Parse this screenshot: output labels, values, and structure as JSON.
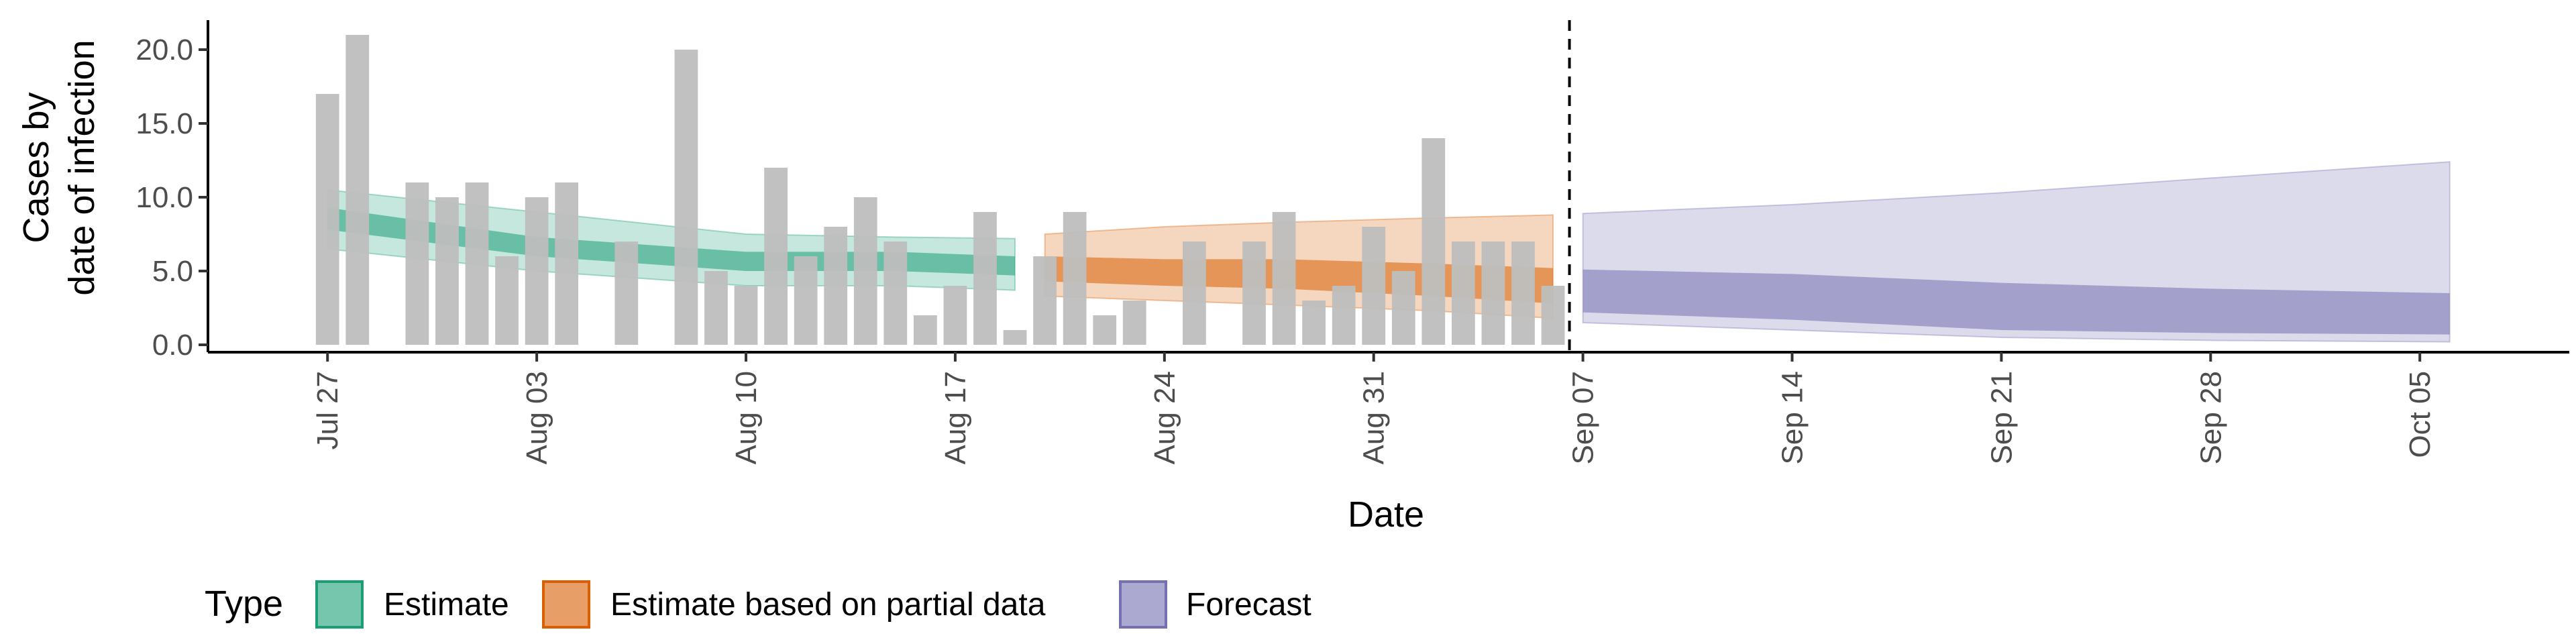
{
  "chart_data": {
    "type": "bar",
    "xlabel": "Date",
    "ylabel_lines": [
      "Cases by",
      "date of infection"
    ],
    "ylim": [
      -0.5,
      22
    ],
    "y_ticks": [
      0,
      5,
      10,
      15,
      20
    ],
    "y_tick_labels": [
      "0.0",
      "5.0",
      "10.0",
      "15.0",
      "20.0"
    ],
    "x_range": [
      "2021-07-23",
      "2021-10-10"
    ],
    "x_tick_dates": [
      "2021-07-27",
      "2021-08-03",
      "2021-08-10",
      "2021-08-17",
      "2021-08-24",
      "2021-08-31",
      "2021-09-07",
      "2021-09-14",
      "2021-09-21",
      "2021-09-28",
      "2021-10-05"
    ],
    "x_tick_labels": [
      "Jul 27",
      "Aug 03",
      "Aug 10",
      "Aug 17",
      "Aug 24",
      "Aug 31",
      "Sep 07",
      "Sep 14",
      "Sep 21",
      "Sep 28",
      "Oct 05"
    ],
    "bar_dates": [
      "2021-07-27",
      "2021-07-28",
      "2021-07-29",
      "2021-07-30",
      "2021-07-31",
      "2021-08-01",
      "2021-08-02",
      "2021-08-03",
      "2021-08-04",
      "2021-08-05",
      "2021-08-06",
      "2021-08-07",
      "2021-08-08",
      "2021-08-09",
      "2021-08-10",
      "2021-08-11",
      "2021-08-12",
      "2021-08-13",
      "2021-08-14",
      "2021-08-15",
      "2021-08-16",
      "2021-08-17",
      "2021-08-18",
      "2021-08-19",
      "2021-08-20",
      "2021-08-21",
      "2021-08-22",
      "2021-08-23",
      "2021-08-24",
      "2021-08-25",
      "2021-08-26",
      "2021-08-27",
      "2021-08-28",
      "2021-08-29",
      "2021-08-30",
      "2021-08-31",
      "2021-09-01",
      "2021-09-02",
      "2021-09-03",
      "2021-09-04",
      "2021-09-05",
      "2021-09-06"
    ],
    "bar_values": [
      17,
      21,
      0,
      11,
      10,
      11,
      6,
      10,
      11,
      0,
      7,
      0,
      20,
      5,
      4,
      12,
      6,
      8,
      10,
      7,
      2,
      4,
      9,
      1,
      6,
      9,
      2,
      3,
      0,
      7,
      0,
      7,
      9,
      3,
      4,
      8,
      5,
      14,
      7,
      7,
      7,
      4
    ],
    "bar_color": "#bebebe",
    "forecast_start": "2021-09-06",
    "series": [
      {
        "name": "Estimate",
        "color": "#1b9e77",
        "x": [
          "2021-07-27",
          "2021-08-03",
          "2021-08-10",
          "2021-08-15",
          "2021-08-19"
        ],
        "ci90_lower": [
          6.5,
          5.0,
          4.0,
          4.0,
          3.7
        ],
        "ci90_upper": [
          10.5,
          9.0,
          7.5,
          7.3,
          7.2
        ],
        "ci50_lower": [
          7.8,
          6.0,
          5.0,
          5.0,
          4.7
        ],
        "ci50_upper": [
          9.3,
          7.3,
          6.3,
          6.3,
          6.0
        ]
      },
      {
        "name": "Estimate based on partial data",
        "color": "#d95f02",
        "x": [
          "2021-08-20",
          "2021-08-24",
          "2021-08-28",
          "2021-09-02",
          "2021-09-06"
        ],
        "ci90_lower": [
          3.3,
          3.0,
          2.7,
          2.3,
          1.8
        ],
        "ci90_upper": [
          7.5,
          8.0,
          8.3,
          8.6,
          8.8
        ],
        "ci50_lower": [
          4.3,
          4.0,
          3.8,
          3.3,
          2.8
        ],
        "ci50_upper": [
          6.0,
          5.8,
          5.8,
          5.5,
          5.2
        ]
      },
      {
        "name": "Forecast",
        "color": "#7570b3",
        "x": [
          "2021-09-07",
          "2021-09-14",
          "2021-09-21",
          "2021-09-28",
          "2021-10-06"
        ],
        "ci90_lower": [
          1.5,
          1.0,
          0.5,
          0.3,
          0.2
        ],
        "ci90_upper": [
          8.9,
          9.5,
          10.3,
          11.3,
          12.4
        ],
        "ci50_lower": [
          2.2,
          1.7,
          1.0,
          0.8,
          0.7
        ],
        "ci50_upper": [
          5.1,
          4.8,
          4.2,
          3.8,
          3.5
        ]
      }
    ],
    "legend_title": "Type",
    "legend_items": [
      "Estimate",
      "Estimate based on partial data",
      "Forecast"
    ],
    "legend_position": "bottom"
  }
}
